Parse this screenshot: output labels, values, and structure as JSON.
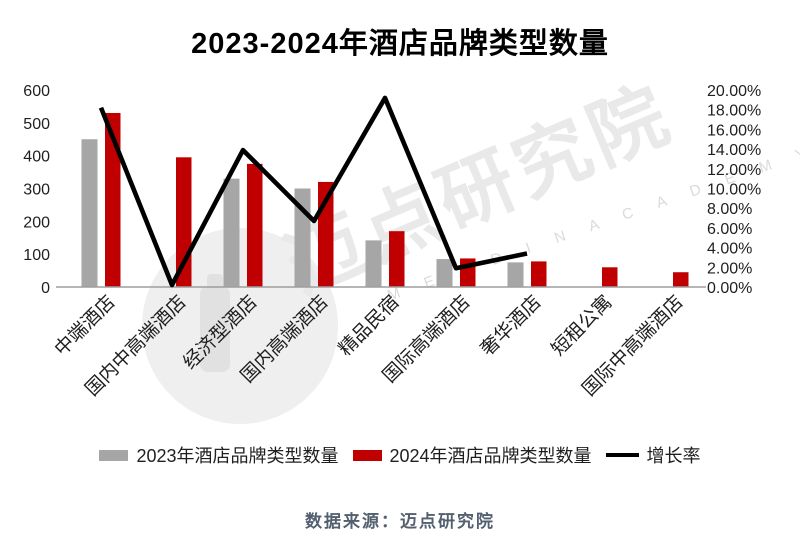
{
  "title": "2023-2024年酒店品牌类型数量",
  "watermark": {
    "text": "迈点研究院",
    "subtext": "M E A D I N   A C A D E M Y"
  },
  "legend": {
    "items": [
      {
        "label": "2023年酒店品牌类型数量",
        "color": "#a6a6a6",
        "swatch": "rect"
      },
      {
        "label": "2024年酒店品牌类型数量",
        "color": "#c00000",
        "swatch": "rect"
      },
      {
        "label": "增长率",
        "color": "#000000",
        "swatch": "line"
      }
    ]
  },
  "footer": {
    "source": "数据来源：迈点研究院"
  },
  "colors": {
    "bar_2023": "#a6a6a6",
    "bar_2024": "#c00000",
    "growth_line": "#000000",
    "axis_line": "#9e9e9e",
    "tick_text": "#1f1f1f",
    "source_text": "#53606f"
  },
  "chart_data": {
    "type": "bar",
    "subtype": "grouped bars with secondary-axis line",
    "title": "2023-2024年酒店品牌类型数量",
    "categories": [
      "中端酒店",
      "国内中高端酒店",
      "经济型酒店",
      "国内高端酒店",
      "精品民宿",
      "国际高端酒店",
      "奢华酒店",
      "短租公寓",
      "国际中高端酒店"
    ],
    "series": [
      {
        "name": "2023年酒店品牌类型数量",
        "type": "bar",
        "axis": "left",
        "color": "#a6a6a6",
        "values": [
          450,
          null,
          330,
          300,
          142,
          85,
          75,
          null,
          null
        ]
      },
      {
        "name": "2024年酒店品牌类型数量",
        "type": "bar",
        "axis": "left",
        "color": "#c00000",
        "values": [
          530,
          395,
          375,
          320,
          170,
          87,
          78,
          60,
          45
        ]
      },
      {
        "name": "增长率",
        "type": "line",
        "axis": "right",
        "color": "#000000",
        "unit": "%",
        "values": [
          18.2,
          0.2,
          13.9,
          6.7,
          19.2,
          1.9,
          3.4,
          null,
          null
        ]
      }
    ],
    "left_axis": {
      "min": 0,
      "max": 600,
      "step": 100,
      "ticks": [
        "600",
        "500",
        "400",
        "300",
        "200",
        "100",
        "0"
      ]
    },
    "right_axis": {
      "min": 0,
      "max": 20,
      "step": 2,
      "ticks": [
        "20.00%",
        "18.00%",
        "16.00%",
        "14.00%",
        "12.00%",
        "10.00%",
        "8.00%",
        "6.00%",
        "4.00%",
        "2.00%",
        "0.00%"
      ]
    },
    "grid": false,
    "legend_position": "bottom",
    "xlabel": "",
    "ylabel": ""
  }
}
